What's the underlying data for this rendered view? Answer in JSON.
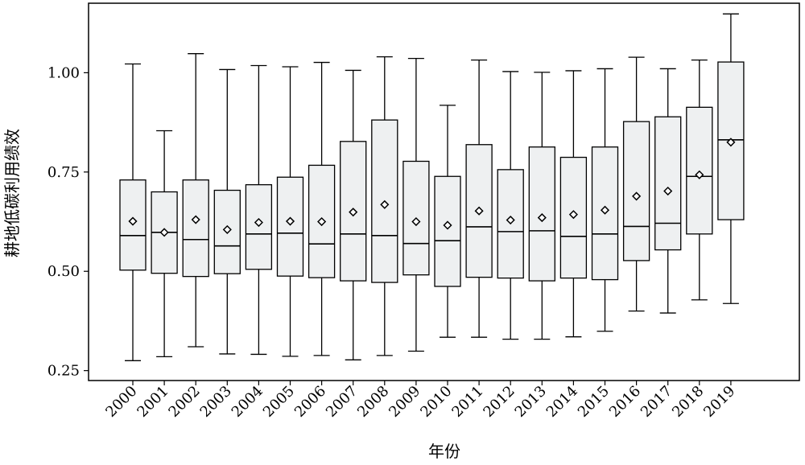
{
  "chart_data": {
    "type": "boxplot",
    "xlabel": "年份",
    "ylabel": "耕地低碳利用绩效",
    "ylim": [
      0.225,
      1.175
    ],
    "yticks": [
      0.25,
      0.5,
      0.75,
      1.0
    ],
    "ytick_labels": [
      "0.25",
      "0.50",
      "0.75",
      "1.00"
    ],
    "grid": false,
    "colors": {
      "box_fill": "#eef0f1",
      "stroke": "#000000"
    },
    "categories": [
      "2000",
      "2001",
      "2002",
      "2003",
      "2004",
      "2005",
      "2006",
      "2007",
      "2008",
      "2009",
      "2010",
      "2011",
      "2012",
      "2013",
      "2014",
      "2015",
      "2016",
      "2017",
      "2018",
      "2019"
    ],
    "boxes": [
      {
        "min": 0.275,
        "q1": 0.503,
        "median": 0.59,
        "q3": 0.73,
        "max": 1.022,
        "mean": 0.626
      },
      {
        "min": 0.285,
        "q1": 0.495,
        "median": 0.598,
        "q3": 0.7,
        "max": 0.854,
        "mean": 0.598
      },
      {
        "min": 0.31,
        "q1": 0.487,
        "median": 0.58,
        "q3": 0.73,
        "max": 1.048,
        "mean": 0.63
      },
      {
        "min": 0.292,
        "q1": 0.494,
        "median": 0.564,
        "q3": 0.704,
        "max": 1.008,
        "mean": 0.605
      },
      {
        "min": 0.291,
        "q1": 0.505,
        "median": 0.594,
        "q3": 0.718,
        "max": 1.018,
        "mean": 0.623
      },
      {
        "min": 0.286,
        "q1": 0.488,
        "median": 0.596,
        "q3": 0.737,
        "max": 1.015,
        "mean": 0.626
      },
      {
        "min": 0.288,
        "q1": 0.484,
        "median": 0.569,
        "q3": 0.767,
        "max": 1.026,
        "mean": 0.625
      },
      {
        "min": 0.277,
        "q1": 0.476,
        "median": 0.594,
        "q3": 0.827,
        "max": 1.006,
        "mean": 0.649
      },
      {
        "min": 0.288,
        "q1": 0.472,
        "median": 0.59,
        "q3": 0.881,
        "max": 1.04,
        "mean": 0.668
      },
      {
        "min": 0.299,
        "q1": 0.491,
        "median": 0.57,
        "q3": 0.777,
        "max": 1.036,
        "mean": 0.625
      },
      {
        "min": 0.334,
        "q1": 0.462,
        "median": 0.577,
        "q3": 0.739,
        "max": 0.918,
        "mean": 0.616
      },
      {
        "min": 0.334,
        "q1": 0.485,
        "median": 0.612,
        "q3": 0.819,
        "max": 1.032,
        "mean": 0.652
      },
      {
        "min": 0.329,
        "q1": 0.483,
        "median": 0.6,
        "q3": 0.756,
        "max": 1.003,
        "mean": 0.629
      },
      {
        "min": 0.329,
        "q1": 0.476,
        "median": 0.602,
        "q3": 0.813,
        "max": 1.001,
        "mean": 0.635
      },
      {
        "min": 0.335,
        "q1": 0.483,
        "median": 0.588,
        "q3": 0.787,
        "max": 1.005,
        "mean": 0.643
      },
      {
        "min": 0.349,
        "q1": 0.479,
        "median": 0.594,
        "q3": 0.813,
        "max": 1.01,
        "mean": 0.654
      },
      {
        "min": 0.4,
        "q1": 0.527,
        "median": 0.613,
        "q3": 0.877,
        "max": 1.039,
        "mean": 0.689
      },
      {
        "min": 0.395,
        "q1": 0.554,
        "median": 0.621,
        "q3": 0.889,
        "max": 1.01,
        "mean": 0.702
      },
      {
        "min": 0.428,
        "q1": 0.594,
        "median": 0.739,
        "q3": 0.913,
        "max": 1.032,
        "mean": 0.743
      },
      {
        "min": 0.419,
        "q1": 0.63,
        "median": 0.831,
        "q3": 1.027,
        "max": 1.148,
        "mean": 0.825
      }
    ]
  }
}
